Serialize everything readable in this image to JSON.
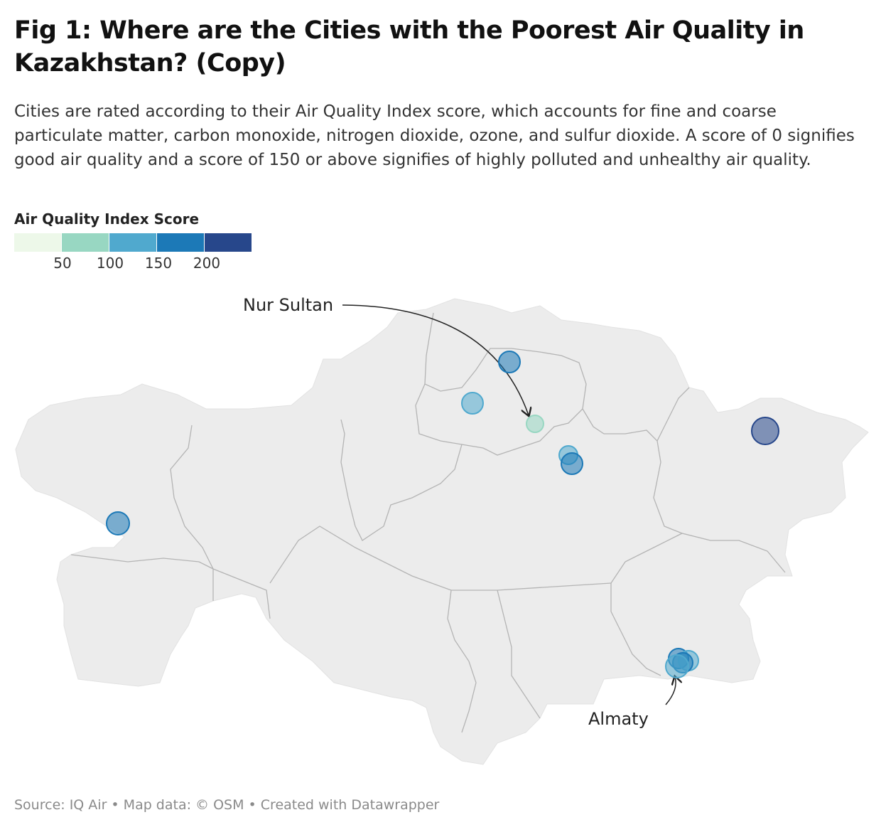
{
  "header": {
    "title": "Fig 1: Where are the Cities with the Poorest Air Quality in Kazakhstan? (Copy)",
    "description": "Cities are rated according to their Air Quality Index score, which accounts for fine and coarse particulate matter, carbon monoxide, nitrogen dioxide, ozone, and sulfur dioxide. A score of 0 signifies good air quality and a score of 150 or above signifies of highly polluted and unhealthy air quality."
  },
  "legend": {
    "title": "Air Quality Index Score",
    "colors": [
      "#edf8e9",
      "#98d7c2",
      "#50a9ce",
      "#1c79b7",
      "#27478b"
    ],
    "ticks": [
      "50",
      "100",
      "150",
      "200"
    ]
  },
  "map": {
    "annotations": [
      {
        "text": "Nur Sultan"
      },
      {
        "text": "Almaty"
      }
    ],
    "cities": [
      {
        "id": "nur-sultan",
        "aqi_band": 1
      },
      {
        "id": "kokshetau",
        "aqi_band": 3
      },
      {
        "id": "kostanay-area",
        "aqi_band": 2
      },
      {
        "id": "karaganda",
        "aqi_band": 2
      },
      {
        "id": "temirtau",
        "aqi_band": 3
      },
      {
        "id": "ust-kamenogorsk",
        "aqi_band": 4
      },
      {
        "id": "atyrau",
        "aqi_band": 3
      },
      {
        "id": "almaty-1",
        "aqi_band": 3
      },
      {
        "id": "almaty-2",
        "aqi_band": 2
      },
      {
        "id": "almaty-3",
        "aqi_band": 3
      },
      {
        "id": "almaty-4",
        "aqi_band": 2
      }
    ]
  },
  "footer": {
    "source": "Source: IQ Air • Map data: © OSM • Created with Datawrapper"
  }
}
